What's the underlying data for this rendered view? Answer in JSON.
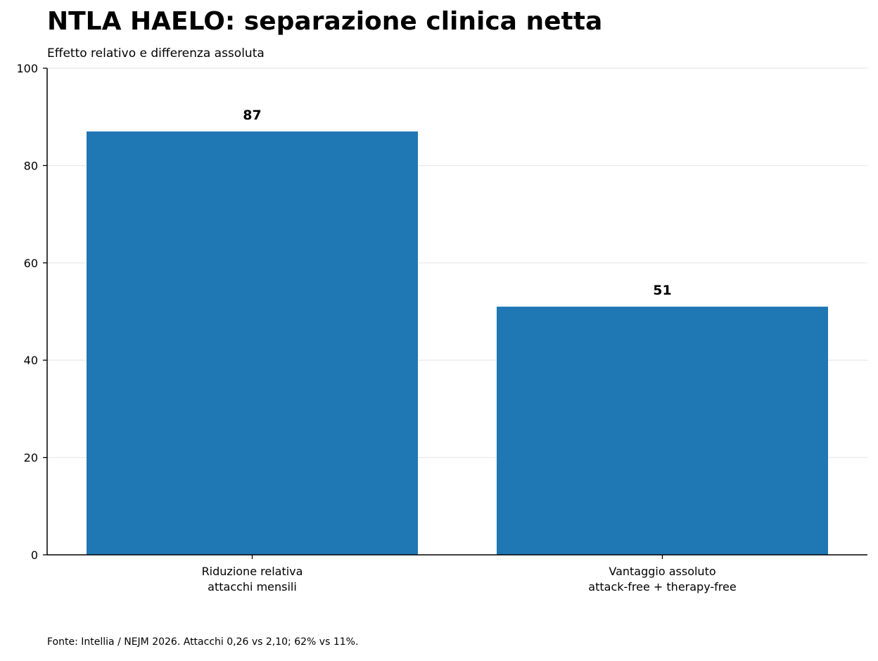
{
  "title": "NTLA HAELO: separazione clinica netta",
  "subtitle": "Effetto relativo e differenza assoluta",
  "footer": "Fonte: Intellia / NEJM 2026. Attacchi 0,26 vs 2,10; 62% vs 11%.",
  "colors": {
    "bar": "#1f77b4",
    "grid": "#ebebeb",
    "axis": "#000000"
  },
  "chart_data": {
    "type": "bar",
    "categories": [
      [
        "Riduzione relativa",
        "attacchi mensili"
      ],
      [
        "Vantaggio assoluto",
        "attack-free + therapy-free"
      ]
    ],
    "values": [
      87,
      51
    ],
    "data_labels": [
      "87",
      "51"
    ],
    "ylim": [
      0,
      100
    ],
    "yticks": [
      0,
      20,
      40,
      60,
      80,
      100
    ],
    "grid": "horizontal",
    "xlabel": "",
    "ylabel": ""
  }
}
